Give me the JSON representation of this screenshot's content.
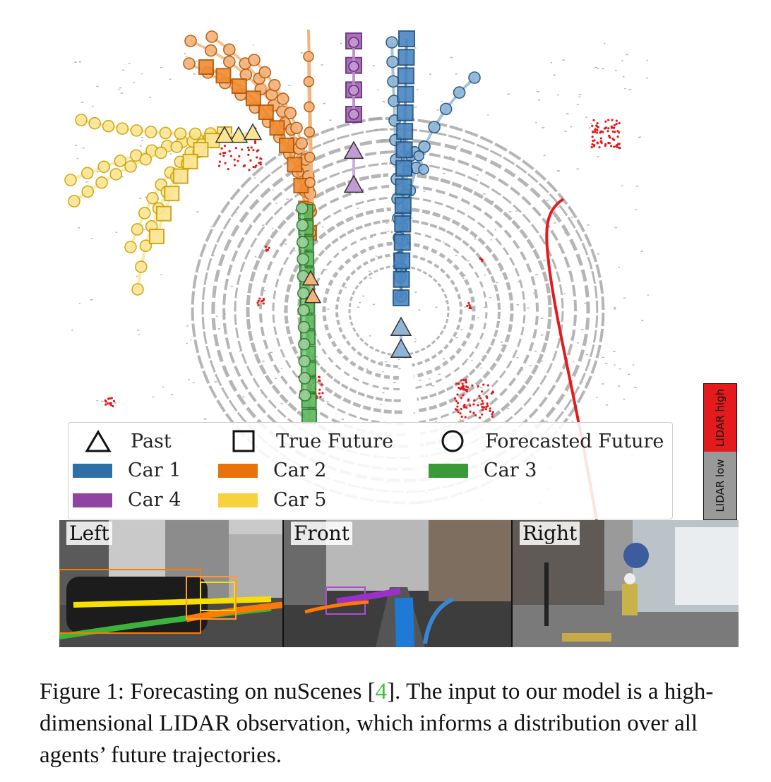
{
  "legend": {
    "markers": [
      {
        "shape": "triangle",
        "label": "Past"
      },
      {
        "shape": "square",
        "label": "True Future"
      },
      {
        "shape": "circle",
        "label": "Forecasted Future"
      }
    ],
    "agents": [
      {
        "label": "Car 1",
        "color": "#2e6fa8"
      },
      {
        "label": "Car 2",
        "color": "#e8730c"
      },
      {
        "label": "Car 3",
        "color": "#3a9a3a"
      },
      {
        "label": "Car 4",
        "color": "#8e44a0"
      },
      {
        "label": "Car 5",
        "color": "#f7d23c"
      }
    ]
  },
  "colorbar": {
    "high_label": "LIDAR high",
    "low_label": "LIDAR low",
    "high_color": "#e41a1c",
    "low_color": "#999999"
  },
  "cameras": [
    {
      "label": "Left"
    },
    {
      "label": "Front"
    },
    {
      "label": "Right"
    }
  ],
  "caption": {
    "prefix": "Figure 1: Forecasting on nuScenes [",
    "cite": "4",
    "suffix": "]. The input to our model is a high-dimensional LIDAR observation, which informs a distribution over all agents’ future trajectories.",
    "cite_color": "#3cc43c"
  }
}
